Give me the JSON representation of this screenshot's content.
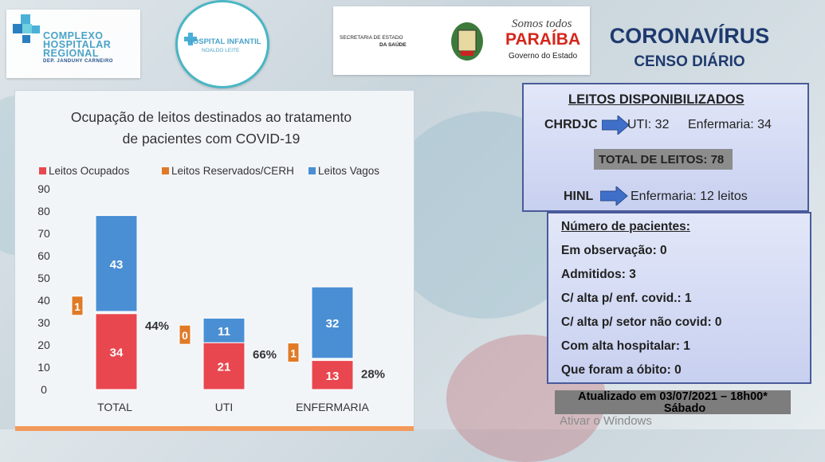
{
  "logos": {
    "logo1": {
      "line1": "COMPLEXO",
      "line2": "HOSPITALAR",
      "line3": "REGIONAL",
      "line4": "DEP. JANDUHY CARNEIRO"
    },
    "logo2": {
      "line1": "HOSPITAL INFANTIL",
      "line2": "NOALDO LEITE"
    },
    "logo3": {
      "secretaria": "SECRETARIA DE ESTADO",
      "saude": "DA SAÚDE",
      "somos": "Somos todos",
      "paraiba": "PARAÍBA",
      "governo": "Governo do Estado"
    }
  },
  "header": {
    "title": "CORONAVÍRUS",
    "subtitle": "CENSO DIÁRIO"
  },
  "chart_data": {
    "type": "bar",
    "stacked": true,
    "title_line1": "Ocupação de leitos destinados ao tratamento",
    "title_line2": "de pacientes com COVID-19",
    "categories": [
      "TOTAL",
      "UTI",
      "ENFERMARIA"
    ],
    "series": [
      {
        "name": "Leitos Ocupados",
        "values": [
          34,
          21,
          13
        ],
        "color": "#e8474f"
      },
      {
        "name": "Leitos Reservados/CERH",
        "values": [
          1,
          0,
          1
        ],
        "color": "#e07a26"
      },
      {
        "name": "Leitos Vagos",
        "values": [
          43,
          11,
          32
        ],
        "color": "#4a8fd4"
      }
    ],
    "percent_labels": [
      "44%",
      "66%",
      "28%"
    ],
    "ylim": [
      0,
      90
    ],
    "yticks": [
      "0",
      "10",
      "20",
      "30",
      "40",
      "50",
      "60",
      "70",
      "80",
      "90"
    ],
    "legend": "top"
  },
  "box1": {
    "heading": "LEITOS DISPONIBILIZADOS",
    "chrdjc": "CHRDJC",
    "uti": "UTI: 32",
    "enf": "Enfermaria: 34",
    "total": "TOTAL DE LEITOS: 78",
    "hinl": "HINL",
    "hinl_enf": "Enfermaria: 12 leitos"
  },
  "box2": {
    "heading": "Número de pacientes:",
    "items": [
      "Em observação: 0",
      "Admitidos: 3",
      "C/ alta p/ enf.  covid.: 1",
      "C/ alta p/ setor não covid: 0",
      "Com alta hospitalar: 1",
      "Que foram a óbito: 0"
    ]
  },
  "footer": {
    "updated": "Atualizado em 03/07/2021 – 18h00*",
    "day": "Sábado",
    "watermark": "Ativar o Windows"
  }
}
